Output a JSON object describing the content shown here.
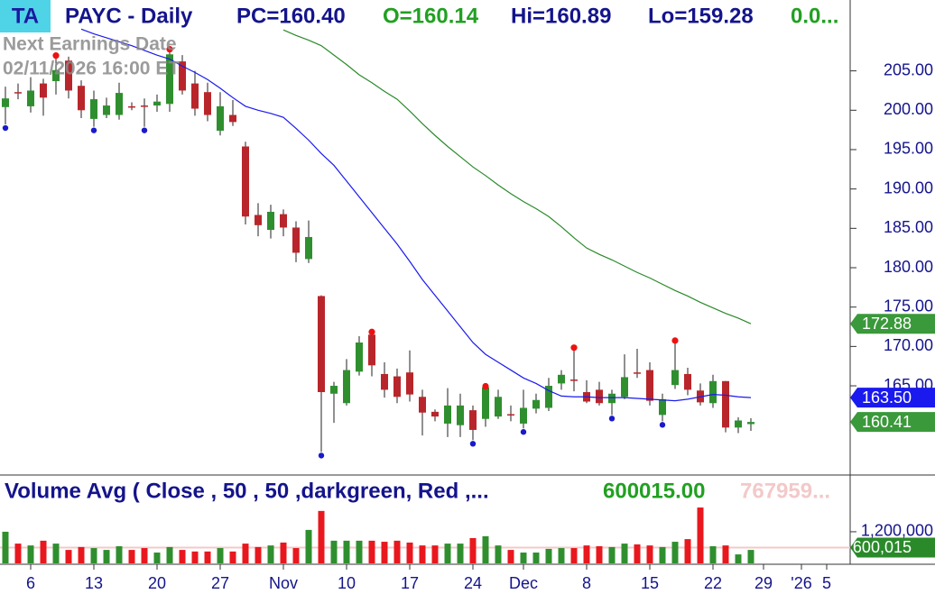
{
  "header": {
    "badge": "TA",
    "symbol": "PAYC - Daily",
    "pc": "PC=160.40",
    "open": "O=160.14",
    "high": "Hi=160.89",
    "low": "Lo=159.28",
    "change": "0.0..."
  },
  "earnings": {
    "label": "Next Earnings Date",
    "date": "02/11/2026  16:00 ET"
  },
  "chart_data": [
    {
      "type": "candlestick",
      "categories": [
        null,
        null,
        "6",
        null,
        null,
        null,
        null,
        "13",
        null,
        null,
        null,
        null,
        "20",
        null,
        null,
        null,
        null,
        "27",
        null,
        null,
        null,
        null,
        "Nov",
        null,
        null,
        null,
        null,
        "10",
        null,
        null,
        null,
        null,
        "17",
        null,
        null,
        null,
        null,
        "24",
        null,
        null,
        null,
        "Dec",
        null,
        null,
        null,
        null,
        "8",
        null,
        null,
        null,
        null,
        "15",
        null,
        null,
        null,
        null,
        "22",
        null,
        null,
        null,
        "29",
        null,
        null,
        "'26",
        null,
        "5"
      ],
      "open": [
        200.4,
        202.3,
        200.5,
        203.4,
        203.7,
        206.3,
        203.1,
        198.9,
        199.4,
        199.4,
        200.5,
        200.6,
        200.6,
        200.8,
        206.2,
        203.4,
        202.3,
        197.4,
        199.4,
        195.4,
        186.7,
        184.8,
        186.8,
        185.1,
        181.1,
        176.4,
        164.0,
        162.8,
        166.8,
        171.5,
        166.5,
        166.2,
        166.7,
        163.6,
        161.7,
        160.2,
        160.0,
        161.9,
        160.8,
        161.1,
        161.4,
        160.2,
        162.1,
        162.2,
        165.3,
        165.8,
        164.2,
        164.5,
        162.8,
        163.6,
        166.7,
        167.0,
        161.3,
        165.1,
        166.5,
        164.4,
        162.8,
        165.6,
        159.7,
        160.14,
        null,
        null,
        null,
        null,
        null,
        null
      ],
      "high": [
        203.0,
        203.4,
        204.2,
        204.0,
        206.6,
        206.8,
        203.8,
        202.5,
        201.6,
        203.5,
        201.0,
        201.5,
        202.0,
        207.4,
        207.0,
        205.0,
        203.5,
        202.3,
        201.3,
        196.0,
        188.2,
        188.0,
        187.4,
        185.9,
        186.0,
        176.5,
        165.5,
        168.4,
        171.3,
        171.5,
        168.0,
        167.2,
        169.5,
        164.5,
        162.0,
        164.7,
        164.0,
        162.5,
        164.6,
        164.5,
        162.5,
        164.5,
        164.0,
        166.0,
        167.0,
        169.5,
        165.7,
        165.5,
        164.5,
        169.0,
        169.7,
        168.0,
        164.0,
        170.4,
        167.3,
        165.3,
        166.4,
        165.6,
        161.0,
        160.89,
        null,
        null,
        null,
        null,
        null,
        null
      ],
      "low": [
        198.2,
        201.4,
        199.7,
        199.3,
        202.0,
        201.5,
        199.0,
        197.9,
        199.0,
        198.8,
        200.0,
        197.9,
        199.8,
        199.8,
        202.0,
        199.3,
        198.6,
        196.8,
        198.0,
        185.5,
        184.0,
        183.7,
        184.0,
        180.7,
        180.6,
        156.6,
        160.3,
        162.5,
        166.3,
        166.2,
        163.5,
        162.8,
        163.0,
        158.7,
        160.5,
        158.5,
        158.5,
        158.1,
        159.8,
        160.8,
        160.5,
        159.6,
        161.5,
        161.8,
        164.5,
        164.3,
        162.8,
        162.5,
        161.3,
        163.3,
        166.0,
        162.5,
        160.5,
        164.6,
        163.8,
        162.5,
        162.2,
        159.1,
        159.0,
        159.28,
        null,
        null,
        null,
        null,
        null,
        null
      ],
      "close": [
        201.5,
        202.2,
        202.5,
        201.6,
        205.1,
        202.5,
        200.0,
        201.4,
        200.6,
        202.2,
        200.4,
        200.5,
        201.1,
        207.1,
        202.5,
        200.2,
        199.4,
        200.5,
        198.5,
        186.5,
        185.4,
        187.1,
        185.1,
        181.9,
        183.9,
        164.2,
        165.0,
        167.0,
        170.5,
        167.6,
        164.5,
        163.6,
        163.9,
        161.6,
        161.1,
        162.5,
        162.5,
        159.4,
        164.8,
        163.6,
        161.3,
        162.2,
        163.2,
        165.0,
        166.4,
        165.7,
        163.0,
        162.8,
        164.0,
        166.1,
        166.6,
        163.1,
        163.3,
        167.0,
        164.5,
        162.9,
        165.6,
        159.7,
        160.6,
        160.41,
        null,
        null,
        null,
        null,
        null,
        null
      ],
      "up_color": "#2f8f2f",
      "down_color": "#b8262b",
      "series": [
        {
          "color": "#1a1aee",
          "values": [
            null,
            null,
            null,
            null,
            null,
            null,
            210.3,
            209.7,
            209.2,
            208.7,
            208.2,
            207.6,
            207.0,
            206.5,
            205.6,
            204.8,
            203.9,
            202.8,
            201.6,
            200.5,
            200.0,
            199.6,
            199.1,
            197.7,
            196.2,
            194.5,
            193.0,
            191.0,
            189.0,
            187.0,
            185.0,
            183.0,
            180.8,
            178.5,
            176.5,
            174.5,
            172.5,
            170.5,
            169.0,
            168.0,
            167.0,
            166.0,
            165.3,
            164.4,
            163.7,
            163.6,
            163.6,
            163.5,
            163.5,
            163.5,
            163.4,
            163.3,
            163.2,
            163.1,
            163.3,
            163.6,
            163.9,
            163.8,
            163.6,
            163.5,
            null,
            null,
            null,
            null,
            null,
            null
          ],
          "value_labels": [
            null,
            null,
            null,
            null,
            null,
            null,
            null,
            null,
            null,
            null,
            null,
            null,
            null,
            null,
            null,
            null,
            null,
            null,
            null,
            null,
            null,
            null,
            null,
            null,
            null,
            null,
            null,
            null,
            null,
            null,
            null,
            null,
            null,
            null,
            null,
            null,
            null,
            null,
            null,
            null,
            null,
            null,
            null,
            null,
            null,
            null,
            null,
            null,
            null,
            null,
            null,
            null,
            null,
            null,
            null,
            null,
            null,
            null,
            null,
            "163.50",
            null,
            null,
            null,
            null,
            null,
            null
          ]
        },
        {
          "color": "#2a8a2a",
          "values": [
            null,
            null,
            null,
            null,
            null,
            null,
            null,
            null,
            null,
            null,
            null,
            null,
            null,
            null,
            null,
            null,
            null,
            null,
            null,
            null,
            null,
            null,
            210.2,
            209.5,
            208.9,
            208.2,
            207.0,
            205.8,
            204.5,
            203.5,
            202.4,
            201.4,
            199.9,
            198.3,
            196.8,
            195.4,
            194.1,
            192.8,
            191.7,
            190.5,
            189.4,
            188.4,
            187.5,
            186.5,
            185.2,
            183.8,
            182.5,
            181.7,
            181.0,
            180.2,
            179.4,
            178.7,
            177.9,
            177.1,
            176.4,
            175.6,
            174.9,
            174.2,
            173.6,
            172.88,
            null,
            null,
            null,
            null,
            null,
            null
          ]
        }
      ],
      "ylim": [
        153.9,
        214
      ],
      "yticks": [
        {
          "value": 165,
          "label": "165.00"
        },
        {
          "value": 170,
          "label": "170.00"
        },
        {
          "value": 175,
          "label": "175.00"
        },
        {
          "value": 180,
          "label": "180.00"
        },
        {
          "value": 185,
          "label": "185.00"
        },
        {
          "value": 190,
          "label": "190.00"
        },
        {
          "value": 195,
          "label": "195.00"
        },
        {
          "value": 200,
          "label": "200.00"
        },
        {
          "value": 205,
          "label": "205.00"
        }
      ]
    },
    {
      "type": "bar",
      "title": "Volume Avg ( Close , 50 , 50 ,darkgreen, Red ,...",
      "avg_text": "600015.00",
      "faint_text": "767959...",
      "values": [
        1200000,
        750000,
        680000,
        860000,
        750000,
        510000,
        620000,
        580000,
        510000,
        650000,
        510000,
        580000,
        410000,
        620000,
        510000,
        450000,
        450000,
        580000,
        450000,
        750000,
        620000,
        680000,
        790000,
        580000,
        1270000,
        1990000,
        860000,
        860000,
        860000,
        860000,
        820000,
        860000,
        790000,
        680000,
        680000,
        750000,
        750000,
        960000,
        1030000,
        680000,
        510000,
        410000,
        410000,
        550000,
        580000,
        580000,
        680000,
        650000,
        620000,
        750000,
        720000,
        680000,
        620000,
        820000,
        920000,
        2120000,
        650000,
        680000,
        340000,
        510000,
        null,
        null,
        null,
        null,
        null,
        null
      ],
      "avg_line": {
        "value": 600015,
        "label": "600,015"
      },
      "ylim": [
        0,
        3320000
      ],
      "yticks": [
        {
          "value": 1200000,
          "label": "1,200,000"
        }
      ]
    }
  ]
}
